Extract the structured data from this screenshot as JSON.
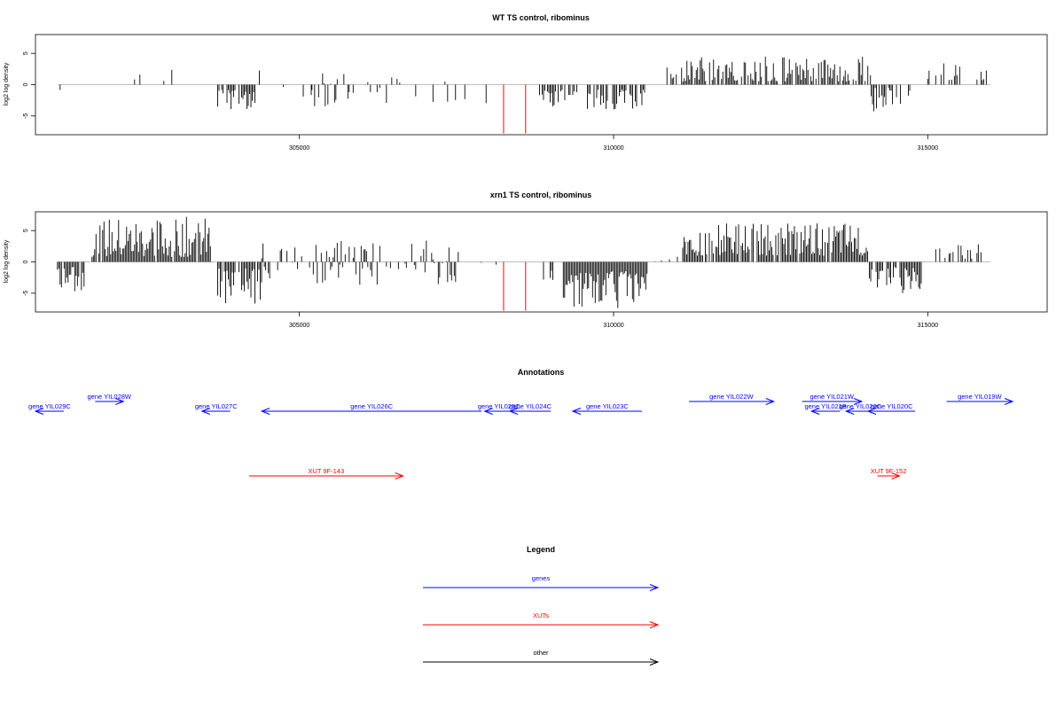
{
  "colors": {
    "genes": "#0000ff",
    "xuts": "#ff0000",
    "other": "#000000",
    "baseline": "#bebebe"
  },
  "chart_data": [
    {
      "type": "bar",
      "title": "WT TS control, ribominus",
      "ylabel": "log2 log density",
      "xlim": [
        300800,
        316900
      ],
      "ylim": [
        -8,
        8
      ],
      "xticks": [
        305000,
        310000,
        315000
      ],
      "yticks": [
        -5,
        0,
        5
      ],
      "red_lines": [
        {
          "x": 308250,
          "y": -7.8
        },
        {
          "x": 308600,
          "y": -7.8
        }
      ],
      "regions": [
        {
          "from": 301150,
          "to": 301450,
          "min": -3.3,
          "max": -0.5,
          "density": 0.12,
          "seed": 11
        },
        {
          "from": 301700,
          "to": 303600,
          "min": 0.5,
          "max": 3.2,
          "density": 0.06,
          "seed": 12
        },
        {
          "from": 303700,
          "to": 304300,
          "min": -4.0,
          "max": -0.8,
          "density": 0.7,
          "seed": 13
        },
        {
          "from": 304300,
          "to": 305200,
          "min": -2.5,
          "max": 2.5,
          "density": 0.12,
          "seed": 14
        },
        {
          "from": 305200,
          "to": 307400,
          "min": -3.5,
          "max": 2.0,
          "density": 0.25,
          "seed": 15
        },
        {
          "from": 307400,
          "to": 308200,
          "min": -3.0,
          "max": -0.5,
          "density": 0.08,
          "seed": 16
        },
        {
          "from": 308800,
          "to": 310500,
          "min": -4.0,
          "max": -0.8,
          "density": 0.55,
          "seed": 17
        },
        {
          "from": 310500,
          "to": 310850,
          "min": -1.5,
          "max": 1.5,
          "density": 0.1,
          "seed": 18
        },
        {
          "from": 310850,
          "to": 314100,
          "min": 0.5,
          "max": 4.5,
          "density": 0.75,
          "seed": 19
        },
        {
          "from": 314100,
          "to": 314750,
          "min": -4.5,
          "max": -0.5,
          "density": 0.5,
          "seed": 20
        },
        {
          "from": 315000,
          "to": 316000,
          "min": 0.5,
          "max": 3.4,
          "density": 0.3,
          "seed": 21
        }
      ]
    },
    {
      "type": "bar",
      "title": "xrn1 TS control, ribominus",
      "ylabel": "log2 log density",
      "xlim": [
        300800,
        316900
      ],
      "ylim": [
        -8,
        8
      ],
      "xticks": [
        305000,
        310000,
        315000
      ],
      "yticks": [
        -5,
        0,
        5
      ],
      "red_lines": [
        {
          "x": 308250,
          "y": -7.8
        },
        {
          "x": 308600,
          "y": -7.8
        }
      ],
      "regions": [
        {
          "from": 301150,
          "to": 301600,
          "min": -4.8,
          "max": -0.8,
          "density": 0.9,
          "seed": 31
        },
        {
          "from": 301700,
          "to": 303600,
          "min": 0.8,
          "max": 7.2,
          "density": 0.9,
          "seed": 32
        },
        {
          "from": 303700,
          "to": 304400,
          "min": -7.0,
          "max": -1.0,
          "density": 0.85,
          "seed": 33
        },
        {
          "from": 304400,
          "to": 305200,
          "min": -3.0,
          "max": 3.0,
          "density": 0.25,
          "seed": 34
        },
        {
          "from": 305200,
          "to": 307600,
          "min": -4.0,
          "max": 3.5,
          "density": 0.45,
          "seed": 35
        },
        {
          "from": 307600,
          "to": 308200,
          "min": -2.5,
          "max": 2.0,
          "density": 0.15,
          "seed": 36
        },
        {
          "from": 308800,
          "to": 309200,
          "min": -3.0,
          "max": -0.5,
          "density": 0.5,
          "seed": 37
        },
        {
          "from": 309200,
          "to": 310550,
          "min": -7.5,
          "max": -1.5,
          "density": 1.0,
          "seed": 38
        },
        {
          "from": 310550,
          "to": 311100,
          "min": -1.0,
          "max": 1.0,
          "density": 0.1,
          "seed": 39
        },
        {
          "from": 311100,
          "to": 314050,
          "min": 1.0,
          "max": 6.2,
          "density": 0.9,
          "seed": 40
        },
        {
          "from": 314050,
          "to": 314900,
          "min": -5.0,
          "max": -0.8,
          "density": 0.75,
          "seed": 41
        },
        {
          "from": 315000,
          "to": 316000,
          "min": 0.5,
          "max": 3.0,
          "density": 0.4,
          "seed": 42
        }
      ]
    }
  ],
  "annotations": {
    "title": "Annotations",
    "features": [
      {
        "label": "gene YIL029C",
        "kind": "gene",
        "start": 301250,
        "end": 300800,
        "row": 0
      },
      {
        "label": "gene YIL028W",
        "kind": "gene",
        "start": 301750,
        "end": 302200,
        "row": 1
      },
      {
        "label": "gene YIL027C",
        "kind": "gene",
        "start": 303900,
        "end": 303450,
        "row": 0
      },
      {
        "label": "gene YIL026C",
        "kind": "gene",
        "start": 307900,
        "end": 304400,
        "row": 0
      },
      {
        "label": "gene YIL025C",
        "kind": "gene",
        "start": 308400,
        "end": 307950,
        "row": 0
      },
      {
        "label": "gene YIL024C",
        "kind": "gene",
        "start": 309000,
        "end": 308350,
        "row": 0
      },
      {
        "label": "gene YIL023C",
        "kind": "gene",
        "start": 310450,
        "end": 309350,
        "row": 0
      },
      {
        "label": "gene YIL022W",
        "kind": "gene",
        "start": 311200,
        "end": 312550,
        "row": 1
      },
      {
        "label": "gene YIL021W",
        "kind": "gene",
        "start": 313000,
        "end": 313950,
        "row": 1
      },
      {
        "label": "gene YIL021B",
        "kind": "gene",
        "start": 313600,
        "end": 313150,
        "row": 0
      },
      {
        "label": "gene YIL020C",
        "kind": "gene",
        "start": 314150,
        "end": 313700,
        "row": 0
      },
      {
        "label": "gene YIL020C",
        "kind": "gene",
        "start": 314800,
        "end": 314050,
        "row": 0
      },
      {
        "label": "gene YIL019W",
        "kind": "gene",
        "start": 315300,
        "end": 316350,
        "row": 1
      },
      {
        "label": "XUT 9F-143",
        "kind": "xut",
        "start": 304200,
        "end": 306650,
        "row": 2
      },
      {
        "label": "XUT 9F-152",
        "kind": "xut",
        "start": 314200,
        "end": 314550,
        "row": 2
      }
    ]
  },
  "legend": {
    "title": "Legend",
    "items": [
      {
        "label": "genes",
        "kind": "gene"
      },
      {
        "label": "XUTs",
        "kind": "xut"
      },
      {
        "label": "other",
        "kind": "other"
      }
    ]
  }
}
